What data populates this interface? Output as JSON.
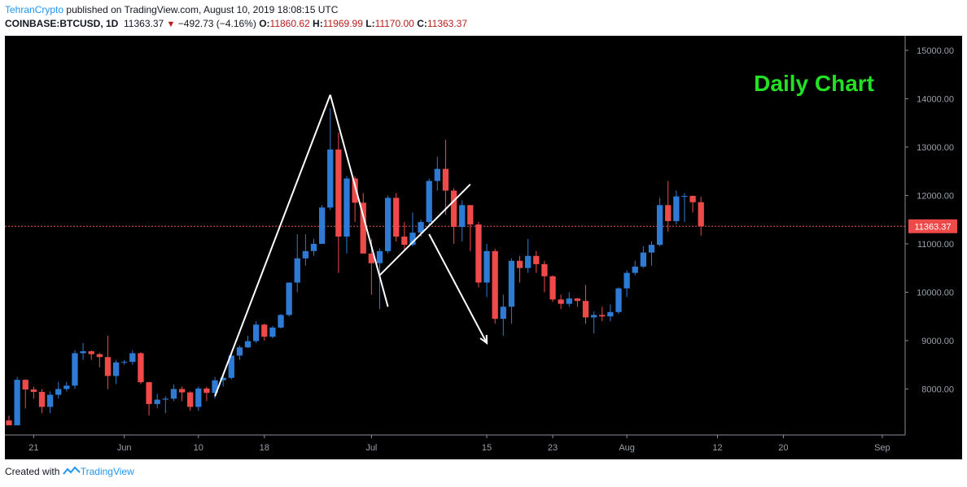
{
  "header": {
    "author": "TehranCrypto",
    "published_text": "published on TradingView.com, August 10, 2019 18:08:15 UTC",
    "symbol": "COINBASE:BTCUSD, 1D",
    "last": "11363.37",
    "change": "−492.73 (−4.16%)",
    "o_label": "O:",
    "o_value": "11860.62",
    "h_label": "H:",
    "h_value": "11969.99",
    "l_label": "L:",
    "l_value": "11170.00",
    "c_label": "C:",
    "c_value": "11363.37"
  },
  "annotation": "Daily Chart",
  "price_label": "11363.37",
  "footer": {
    "created_with": "Created with",
    "brand": "TradingView"
  },
  "colors": {
    "up": "#2e7bd6",
    "down": "#ef4a4a",
    "background": "#000000",
    "annotation": "#22e022",
    "drawing": "#ffffff",
    "price_line": "#e05555"
  },
  "chart_data": {
    "type": "candlestick",
    "y_ticks": [
      8000,
      9000,
      10000,
      11000,
      12000,
      13000,
      14000,
      15000
    ],
    "y_tick_labels": [
      "8000.00",
      "9000.00",
      "10000.00",
      "11000.00",
      "12000.00",
      "13000.00",
      "14000.00",
      "15000.00"
    ],
    "ylim": [
      7050,
      15300
    ],
    "x_ticks": [
      {
        "label": "21",
        "date": "2019-05-21"
      },
      {
        "label": "Jun",
        "date": "2019-06-01"
      },
      {
        "label": "10",
        "date": "2019-06-10"
      },
      {
        "label": "18",
        "date": "2019-06-18"
      },
      {
        "label": "Jul",
        "date": "2019-07-01"
      },
      {
        "label": "15",
        "date": "2019-07-15"
      },
      {
        "label": "23",
        "date": "2019-07-23"
      },
      {
        "label": "Aug",
        "date": "2019-08-01"
      },
      {
        "label": "12",
        "date": "2019-08-12"
      },
      {
        "label": "20",
        "date": "2019-08-20"
      },
      {
        "label": "Sep",
        "date": "2019-09-01"
      }
    ],
    "xlim": [
      "2019-05-18",
      "2019-09-02"
    ],
    "last_price": 11363.37,
    "candles": [
      {
        "d": "2019-05-18",
        "o": 7350,
        "h": 7450,
        "l": 7250,
        "c": 7250
      },
      {
        "d": "2019-05-19",
        "o": 7250,
        "h": 8250,
        "l": 7250,
        "c": 8190
      },
      {
        "d": "2019-05-20",
        "o": 8190,
        "h": 8200,
        "l": 7600,
        "c": 7990
      },
      {
        "d": "2019-05-21",
        "o": 7990,
        "h": 8050,
        "l": 7800,
        "c": 7940
      },
      {
        "d": "2019-05-22",
        "o": 7940,
        "h": 8000,
        "l": 7500,
        "c": 7630
      },
      {
        "d": "2019-05-23",
        "o": 7630,
        "h": 7950,
        "l": 7500,
        "c": 7880
      },
      {
        "d": "2019-05-24",
        "o": 7880,
        "h": 8150,
        "l": 7800,
        "c": 8000
      },
      {
        "d": "2019-05-25",
        "o": 8000,
        "h": 8150,
        "l": 7950,
        "c": 8070
      },
      {
        "d": "2019-05-26",
        "o": 8070,
        "h": 8800,
        "l": 8000,
        "c": 8740
      },
      {
        "d": "2019-05-27",
        "o": 8740,
        "h": 8950,
        "l": 8600,
        "c": 8780
      },
      {
        "d": "2019-05-28",
        "o": 8780,
        "h": 8800,
        "l": 8600,
        "c": 8720
      },
      {
        "d": "2019-05-29",
        "o": 8720,
        "h": 8750,
        "l": 8450,
        "c": 8660
      },
      {
        "d": "2019-05-30",
        "o": 8660,
        "h": 9100,
        "l": 8000,
        "c": 8270
      },
      {
        "d": "2019-05-31",
        "o": 8270,
        "h": 8600,
        "l": 8100,
        "c": 8550
      },
      {
        "d": "2019-06-01",
        "o": 8550,
        "h": 8600,
        "l": 8500,
        "c": 8560
      },
      {
        "d": "2019-06-02",
        "o": 8560,
        "h": 8800,
        "l": 8500,
        "c": 8740
      },
      {
        "d": "2019-06-03",
        "o": 8740,
        "h": 8760,
        "l": 8100,
        "c": 8140
      },
      {
        "d": "2019-06-04",
        "o": 8140,
        "h": 8150,
        "l": 7450,
        "c": 7690
      },
      {
        "d": "2019-06-05",
        "o": 7690,
        "h": 7900,
        "l": 7600,
        "c": 7780
      },
      {
        "d": "2019-06-06",
        "o": 7780,
        "h": 7850,
        "l": 7500,
        "c": 7800
      },
      {
        "d": "2019-06-07",
        "o": 7800,
        "h": 8100,
        "l": 7750,
        "c": 8000
      },
      {
        "d": "2019-06-08",
        "o": 8000,
        "h": 8050,
        "l": 7750,
        "c": 7930
      },
      {
        "d": "2019-06-09",
        "o": 7930,
        "h": 7950,
        "l": 7550,
        "c": 7630
      },
      {
        "d": "2019-06-10",
        "o": 7630,
        "h": 8050,
        "l": 7550,
        "c": 8010
      },
      {
        "d": "2019-06-11",
        "o": 8010,
        "h": 8050,
        "l": 7750,
        "c": 7920
      },
      {
        "d": "2019-06-12",
        "o": 7920,
        "h": 8250,
        "l": 7800,
        "c": 8180
      },
      {
        "d": "2019-06-13",
        "o": 8180,
        "h": 8300,
        "l": 8050,
        "c": 8230
      },
      {
        "d": "2019-06-14",
        "o": 8230,
        "h": 8750,
        "l": 8200,
        "c": 8690
      },
      {
        "d": "2019-06-15",
        "o": 8690,
        "h": 8900,
        "l": 8600,
        "c": 8860
      },
      {
        "d": "2019-06-16",
        "o": 8860,
        "h": 9100,
        "l": 8850,
        "c": 8990
      },
      {
        "d": "2019-06-17",
        "o": 8990,
        "h": 9400,
        "l": 8950,
        "c": 9330
      },
      {
        "d": "2019-06-18",
        "o": 9330,
        "h": 9350,
        "l": 9000,
        "c": 9080
      },
      {
        "d": "2019-06-19",
        "o": 9080,
        "h": 9300,
        "l": 9050,
        "c": 9270
      },
      {
        "d": "2019-06-20",
        "o": 9270,
        "h": 9550,
        "l": 9250,
        "c": 9530
      },
      {
        "d": "2019-06-21",
        "o": 9530,
        "h": 10200,
        "l": 9500,
        "c": 10200
      },
      {
        "d": "2019-06-22",
        "o": 10200,
        "h": 11200,
        "l": 10000,
        "c": 10700
      },
      {
        "d": "2019-06-23",
        "o": 10700,
        "h": 11200,
        "l": 10550,
        "c": 10850
      },
      {
        "d": "2019-06-24",
        "o": 10850,
        "h": 11100,
        "l": 10750,
        "c": 11000
      },
      {
        "d": "2019-06-25",
        "o": 11000,
        "h": 11800,
        "l": 11000,
        "c": 11750
      },
      {
        "d": "2019-06-26",
        "o": 11750,
        "h": 13800,
        "l": 11700,
        "c": 12950
      },
      {
        "d": "2019-06-27",
        "o": 12950,
        "h": 13300,
        "l": 10400,
        "c": 11150
      },
      {
        "d": "2019-06-28",
        "o": 11150,
        "h": 12400,
        "l": 10800,
        "c": 12350
      },
      {
        "d": "2019-06-29",
        "o": 12350,
        "h": 12400,
        "l": 11450,
        "c": 11850
      },
      {
        "d": "2019-06-30",
        "o": 11850,
        "h": 12050,
        "l": 10800,
        "c": 10800
      },
      {
        "d": "2019-07-01",
        "o": 10800,
        "h": 11100,
        "l": 9950,
        "c": 10600
      },
      {
        "d": "2019-07-02",
        "o": 10600,
        "h": 10900,
        "l": 9650,
        "c": 10850
      },
      {
        "d": "2019-07-03",
        "o": 10850,
        "h": 12000,
        "l": 10800,
        "c": 11950
      },
      {
        "d": "2019-07-04",
        "o": 11950,
        "h": 12050,
        "l": 11050,
        "c": 11150
      },
      {
        "d": "2019-07-05",
        "o": 11150,
        "h": 11450,
        "l": 10850,
        "c": 10980
      },
      {
        "d": "2019-07-06",
        "o": 10980,
        "h": 11650,
        "l": 10950,
        "c": 11230
      },
      {
        "d": "2019-07-07",
        "o": 11230,
        "h": 11500,
        "l": 11150,
        "c": 11450
      },
      {
        "d": "2019-07-08",
        "o": 11450,
        "h": 12350,
        "l": 11350,
        "c": 12300
      },
      {
        "d": "2019-07-09",
        "o": 12300,
        "h": 12800,
        "l": 12100,
        "c": 12550
      },
      {
        "d": "2019-07-10",
        "o": 12550,
        "h": 13150,
        "l": 11600,
        "c": 12100
      },
      {
        "d": "2019-07-11",
        "o": 12100,
        "h": 12150,
        "l": 11000,
        "c": 11350
      },
      {
        "d": "2019-07-12",
        "o": 11350,
        "h": 11900,
        "l": 11050,
        "c": 11800
      },
      {
        "d": "2019-07-13",
        "o": 11800,
        "h": 11800,
        "l": 10850,
        "c": 11400
      },
      {
        "d": "2019-07-14",
        "o": 11400,
        "h": 11450,
        "l": 10100,
        "c": 10200
      },
      {
        "d": "2019-07-15",
        "o": 10200,
        "h": 11000,
        "l": 9900,
        "c": 10850
      },
      {
        "d": "2019-07-16",
        "o": 10850,
        "h": 10900,
        "l": 9350,
        "c": 9450
      },
      {
        "d": "2019-07-17",
        "o": 9450,
        "h": 9950,
        "l": 9100,
        "c": 9700
      },
      {
        "d": "2019-07-18",
        "o": 9700,
        "h": 10700,
        "l": 9350,
        "c": 10650
      },
      {
        "d": "2019-07-19",
        "o": 10650,
        "h": 10750,
        "l": 10200,
        "c": 10500
      },
      {
        "d": "2019-07-20",
        "o": 10500,
        "h": 11100,
        "l": 10400,
        "c": 10750
      },
      {
        "d": "2019-07-21",
        "o": 10750,
        "h": 10850,
        "l": 10400,
        "c": 10580
      },
      {
        "d": "2019-07-22",
        "o": 10580,
        "h": 10650,
        "l": 10000,
        "c": 10330
      },
      {
        "d": "2019-07-23",
        "o": 10330,
        "h": 10350,
        "l": 9800,
        "c": 9850
      },
      {
        "d": "2019-07-24",
        "o": 9850,
        "h": 9950,
        "l": 9650,
        "c": 9760
      },
      {
        "d": "2019-07-25",
        "o": 9760,
        "h": 10000,
        "l": 9700,
        "c": 9870
      },
      {
        "d": "2019-07-26",
        "o": 9870,
        "h": 9880,
        "l": 9700,
        "c": 9820
      },
      {
        "d": "2019-07-27",
        "o": 9820,
        "h": 10150,
        "l": 9350,
        "c": 9480
      },
      {
        "d": "2019-07-28",
        "o": 9480,
        "h": 9600,
        "l": 9150,
        "c": 9530
      },
      {
        "d": "2019-07-29",
        "o": 9530,
        "h": 9700,
        "l": 9400,
        "c": 9500
      },
      {
        "d": "2019-07-30",
        "o": 9500,
        "h": 9750,
        "l": 9400,
        "c": 9590
      },
      {
        "d": "2019-07-31",
        "o": 9590,
        "h": 10100,
        "l": 9550,
        "c": 10080
      },
      {
        "d": "2019-08-01",
        "o": 10080,
        "h": 10450,
        "l": 9900,
        "c": 10400
      },
      {
        "d": "2019-08-02",
        "o": 10400,
        "h": 10650,
        "l": 10350,
        "c": 10530
      },
      {
        "d": "2019-08-03",
        "o": 10530,
        "h": 10950,
        "l": 10500,
        "c": 10820
      },
      {
        "d": "2019-08-04",
        "o": 10820,
        "h": 11050,
        "l": 10550,
        "c": 10980
      },
      {
        "d": "2019-08-05",
        "o": 10980,
        "h": 11950,
        "l": 10950,
        "c": 11800
      },
      {
        "d": "2019-08-06",
        "o": 11800,
        "h": 12300,
        "l": 11250,
        "c": 11470
      },
      {
        "d": "2019-08-07",
        "o": 11470,
        "h": 12100,
        "l": 11400,
        "c": 11980
      },
      {
        "d": "2019-08-08",
        "o": 11980,
        "h": 12050,
        "l": 11450,
        "c": 11990
      },
      {
        "d": "2019-08-09",
        "o": 11990,
        "h": 12000,
        "l": 11650,
        "c": 11860
      },
      {
        "d": "2019-08-10",
        "o": 11860.62,
        "h": 11969.99,
        "l": 11170.0,
        "c": 11363.37
      }
    ],
    "drawings": [
      {
        "type": "line",
        "points": [
          [
            "2019-06-12",
            7850
          ],
          [
            "2019-06-26",
            14080
          ]
        ]
      },
      {
        "type": "line",
        "points": [
          [
            "2019-06-26",
            14080
          ],
          [
            "2019-07-03",
            9700
          ]
        ]
      },
      {
        "type": "line",
        "points": [
          [
            "2019-07-02",
            10350
          ],
          [
            "2019-07-13",
            12230
          ]
        ]
      },
      {
        "type": "arrow",
        "points": [
          [
            "2019-07-08",
            11200
          ],
          [
            "2019-07-15",
            8950
          ]
        ]
      }
    ]
  }
}
